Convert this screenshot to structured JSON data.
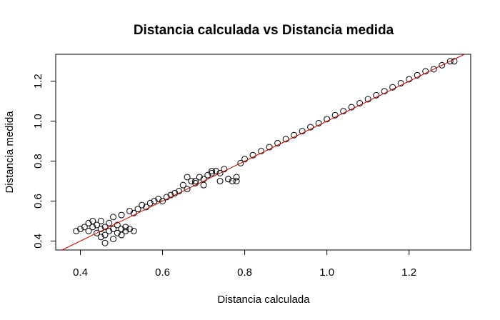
{
  "chart_data": {
    "type": "scatter",
    "title": "Distancia calculada vs Distancia medida",
    "xlabel": "Distancia calculada",
    "ylabel": "Distancia medida",
    "xlim": [
      0.34,
      1.35
    ],
    "ylim": [
      0.355,
      1.335
    ],
    "x_ticks": [
      "0.4",
      "0.6",
      "0.8",
      "1.0",
      "1.2"
    ],
    "y_ticks": [
      "0.4",
      "0.6",
      "0.8",
      "1.0",
      "1.2"
    ],
    "grid": false,
    "legend": "none",
    "marker": "open-circle",
    "point_color": "#000000",
    "reference_line": {
      "type": "identity",
      "slope": 1,
      "intercept": 0,
      "color": "#cc0000"
    },
    "series": [
      {
        "x": [
          0.39,
          0.4,
          0.41,
          0.42,
          0.42,
          0.43,
          0.43,
          0.44,
          0.44,
          0.45,
          0.45,
          0.46,
          0.46,
          0.47,
          0.47,
          0.48,
          0.48,
          0.49,
          0.49,
          0.5,
          0.5,
          0.51,
          0.51,
          0.52,
          0.53,
          0.45,
          0.46,
          0.48,
          0.5,
          0.52,
          0.53,
          0.54,
          0.55,
          0.56,
          0.57,
          0.58,
          0.59,
          0.6,
          0.61,
          0.62,
          0.63,
          0.64,
          0.65,
          0.66,
          0.67,
          0.68,
          0.69,
          0.7,
          0.71,
          0.72,
          0.73,
          0.74,
          0.75,
          0.76,
          0.77,
          0.78,
          0.66,
          0.68,
          0.7,
          0.72,
          0.74,
          0.76,
          0.78,
          0.79,
          0.8,
          0.82,
          0.84,
          0.86,
          0.88,
          0.9,
          0.92,
          0.94,
          0.96,
          0.98,
          1.0,
          1.02,
          1.04,
          1.06,
          1.08,
          1.1,
          1.12,
          1.14,
          1.16,
          1.18,
          1.2,
          1.22,
          1.24,
          1.26,
          1.28,
          1.3,
          1.31
        ],
        "y": [
          0.45,
          0.46,
          0.47,
          0.45,
          0.49,
          0.47,
          0.5,
          0.48,
          0.44,
          0.46,
          0.5,
          0.47,
          0.43,
          0.49,
          0.45,
          0.52,
          0.46,
          0.44,
          0.48,
          0.46,
          0.43,
          0.47,
          0.45,
          0.46,
          0.45,
          0.42,
          0.39,
          0.41,
          0.53,
          0.55,
          0.54,
          0.56,
          0.58,
          0.57,
          0.59,
          0.6,
          0.61,
          0.6,
          0.62,
          0.63,
          0.64,
          0.65,
          0.68,
          0.66,
          0.7,
          0.69,
          0.72,
          0.71,
          0.73,
          0.74,
          0.75,
          0.74,
          0.76,
          0.71,
          0.7,
          0.72,
          0.72,
          0.7,
          0.68,
          0.75,
          0.7,
          0.71,
          0.7,
          0.79,
          0.81,
          0.83,
          0.85,
          0.87,
          0.89,
          0.91,
          0.93,
          0.95,
          0.97,
          0.99,
          1.01,
          1.03,
          1.05,
          1.07,
          1.09,
          1.11,
          1.13,
          1.15,
          1.17,
          1.19,
          1.21,
          1.23,
          1.25,
          1.26,
          1.28,
          1.3,
          1.3
        ]
      }
    ]
  }
}
